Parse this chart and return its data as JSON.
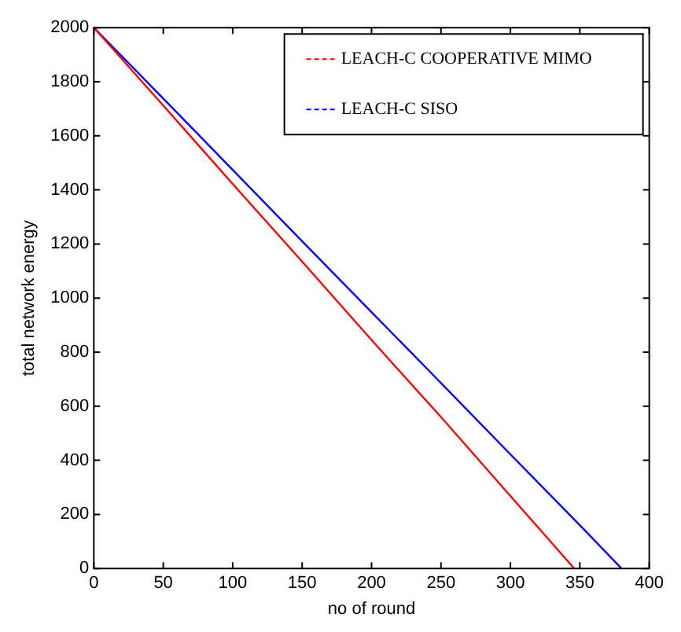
{
  "chart_data": {
    "type": "line",
    "xlabel": "no of round",
    "ylabel": "total network energy",
    "xlim": [
      0,
      400
    ],
    "xticks": [
      0,
      50,
      100,
      150,
      200,
      250,
      300,
      350,
      400
    ],
    "ylim": [
      0,
      2000
    ],
    "yticks": [
      0,
      200,
      400,
      600,
      800,
      1000,
      1200,
      1400,
      1600,
      1800,
      2000
    ],
    "grid": false,
    "legend": "top right",
    "line_style": "solid",
    "marker": "none",
    "series": [
      {
        "name": "LEACH-C COOPERATIVE MIMO",
        "color": "#ff0000",
        "x": [
          0,
          50,
          100,
          150,
          200,
          250,
          300,
          346
        ],
        "values": [
          2000,
          1712,
          1422,
          1135,
          845,
          560,
          268,
          0
        ]
      },
      {
        "name": "LEACH-C SISO",
        "color": "#0000ff",
        "x": [
          0,
          50,
          100,
          150,
          200,
          250,
          300,
          350,
          380
        ],
        "values": [
          2000,
          1738,
          1474,
          1210,
          948,
          686,
          422,
          160,
          0
        ]
      }
    ]
  }
}
